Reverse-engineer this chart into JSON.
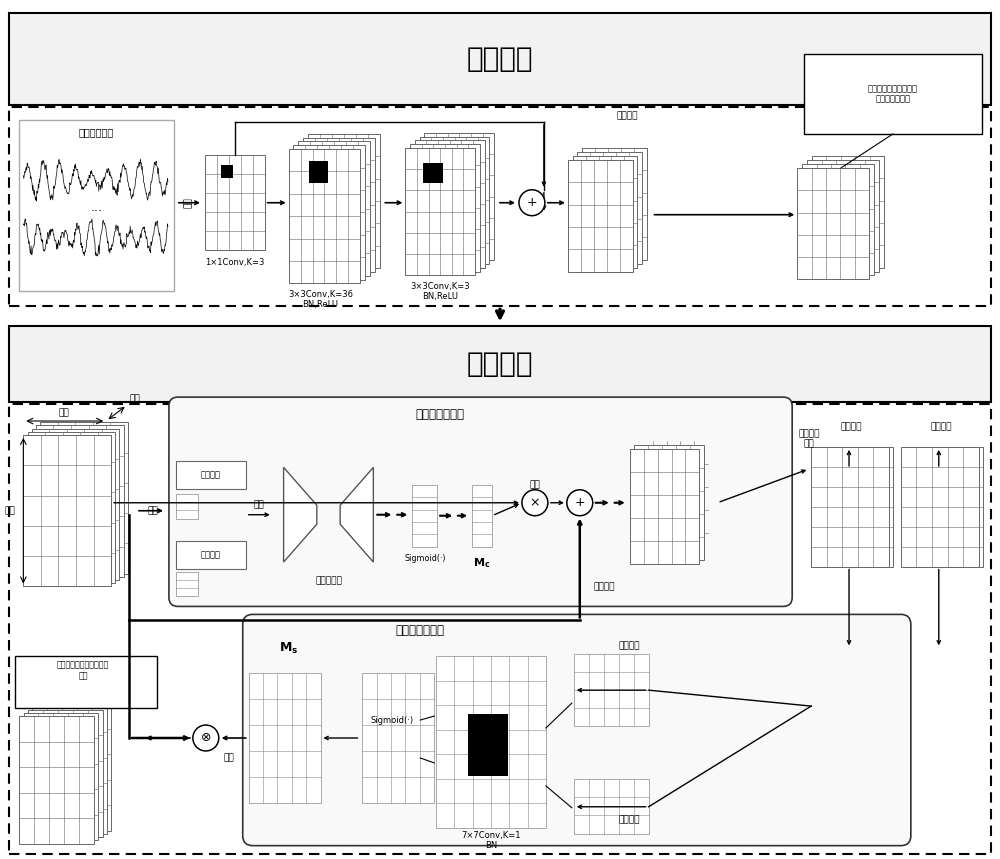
{
  "title_top": "特征提取",
  "title_bottom": "特征增强",
  "texts": {
    "raw_data_label": "原始振动数据",
    "reshape_label": "整形",
    "conv1_label": "1×1Conv,K=3",
    "conv2_label": "3×3Conv,K=36\nBN,ReLU",
    "conv3_label": "3×3Conv,K=3\nBN,ReLU",
    "residual_label": "残差连接",
    "low_feat_label": "在空间和通道视角下提\n取到的低级特征",
    "width_label": "宽度",
    "channel_label": "通道",
    "height_label": "高度",
    "pooling_label": "池化",
    "max_pool_label": "最大池化",
    "avg_pool_label": "平均池化",
    "merge_label": "融合",
    "mlp_label": "多层感知机",
    "channel_attn_label": "通道注意力模型",
    "sigmoid1_label": "Sigmoid(·)",
    "mc_label": "M",
    "mc_sub": "c",
    "add_weight1_label": "加权",
    "residual2_label": "残差连接",
    "along_ch_label": "沿通道轴\n池化",
    "spatial_attn_label": "空间注意力模型",
    "ms_label": "M",
    "ms_sub": "s",
    "sigmoid2_label": "Sigmoid(·)",
    "conv7_label": "7×7Conv,K=1\nBN",
    "max_pool2_label": "最大池化",
    "avg_pool2_label": "平均池化",
    "add_weight2_label": "加权",
    "enhanced_feat_label": "空间和通道视角下的增强\n特征"
  }
}
